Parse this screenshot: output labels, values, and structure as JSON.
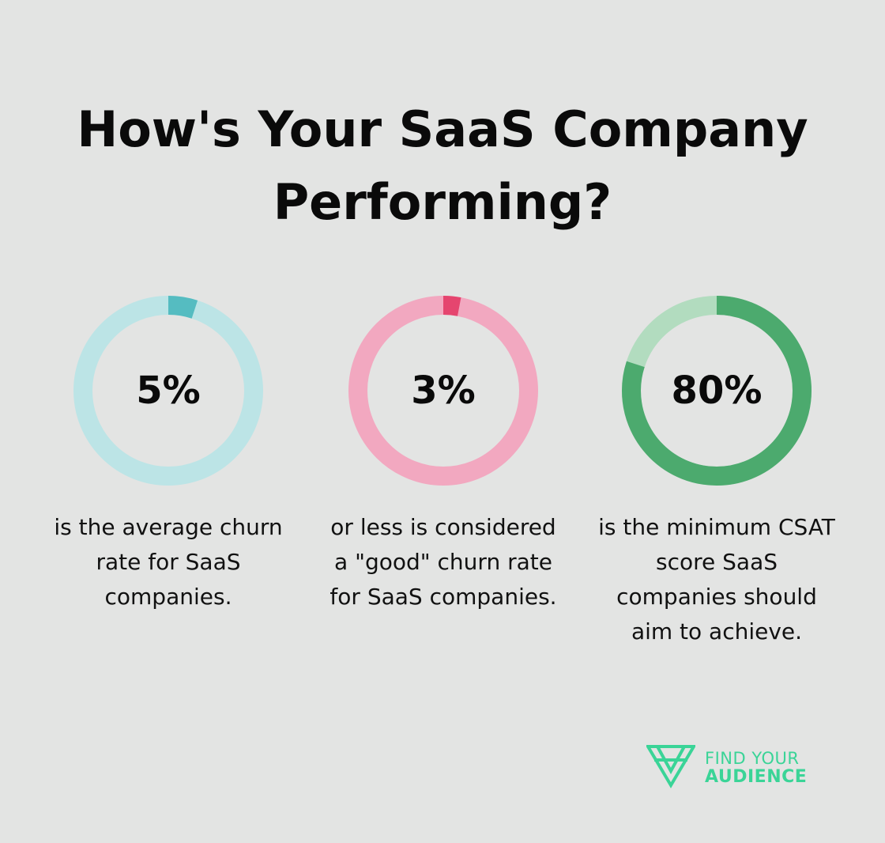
{
  "title": {
    "line1": "How's Your SaaS Company",
    "line2": "Performing?"
  },
  "chart_data": [
    {
      "type": "pie",
      "value": 5,
      "label": "5%",
      "description": [
        "is the average churn",
        "rate for SaaS",
        "companies."
      ],
      "colors": {
        "track": "#bce4e6",
        "fill": "#55bcc1"
      }
    },
    {
      "type": "pie",
      "value": 3,
      "label": "3%",
      "description": [
        "or less is considered",
        "a \"good\" churn rate",
        "for SaaS companies."
      ],
      "colors": {
        "track": "#f2a8c0",
        "fill": "#e5456f"
      }
    },
    {
      "type": "pie",
      "value": 80,
      "label": "80%",
      "description": [
        "is the minimum CSAT",
        "score SaaS",
        "companies should",
        "aim to achieve."
      ],
      "colors": {
        "track": "#b2dcbf",
        "fill": "#4caa6e"
      }
    }
  ],
  "logo": {
    "line1": "FIND YOUR",
    "line2": "AUDIENCE",
    "color": "#3ad497"
  }
}
